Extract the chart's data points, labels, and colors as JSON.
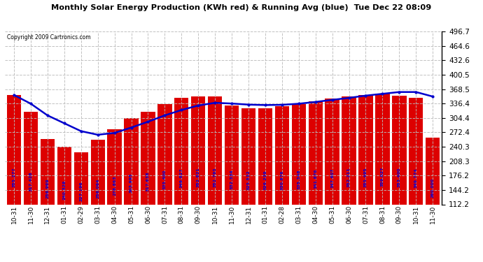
{
  "title": "Monthly Solar Energy Production (KWh red) & Running Avg (blue)  Tue Dec 22 08:09",
  "copyright": "Copyright 2009 Cartronics.com",
  "categories": [
    "10-31",
    "11-30",
    "12-31",
    "01-31",
    "02-29",
    "03-31",
    "04-30",
    "05-31",
    "06-30",
    "07-31",
    "08-31",
    "09-30",
    "10-31",
    "11-30",
    "12-31",
    "01-31",
    "02-28",
    "03-31",
    "04-30",
    "05-31",
    "06-30",
    "07-31",
    "08-31",
    "09-30",
    "10-31",
    "11-30"
  ],
  "bar_values": [
    355.277,
    317.428,
    256.969,
    240.328,
    227.196,
    256.064,
    278.863,
    303.995,
    317.638,
    335.4,
    349.827,
    352.821,
    352.793,
    332.334,
    325.532,
    326.239,
    330.876,
    335.348,
    341.876,
    347.607,
    352.211,
    355.495,
    359.027,
    353.4,
    349.774,
    260.0
  ],
  "running_avg": [
    355.277,
    336.0,
    310.0,
    292.5,
    275.0,
    267.0,
    271.0,
    283.0,
    296.0,
    310.0,
    322.0,
    332.0,
    338.0,
    336.4,
    334.0,
    333.0,
    333.5,
    336.0,
    340.0,
    344.5,
    349.0,
    354.0,
    358.0,
    362.0,
    362.0,
    352.0
  ],
  "bar_color": "#DD0000",
  "line_color": "#0000CC",
  "bg_color": "#FFFFFF",
  "grid_color": "#BBBBBB",
  "title_color": "#000000",
  "copyright_color": "#000000",
  "label_color": "#0000DD",
  "ylim_min": 112.2,
  "ylim_max": 496.7,
  "yticks": [
    112.2,
    144.2,
    176.2,
    208.3,
    240.3,
    272.4,
    304.4,
    336.4,
    368.5,
    400.5,
    432.6,
    464.6,
    496.7
  ]
}
